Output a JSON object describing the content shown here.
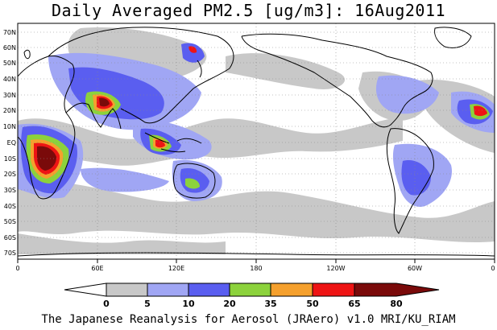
{
  "title": "Daily Averaged PM2.5 [ug/m3]: 16Aug2011",
  "credit": "The Japanese Reanalysis for Aerosol (JRAero) v1.0 MRI/KU_RIAM",
  "map": {
    "lon_labels": [
      "0",
      "60E",
      "120E",
      "180",
      "120W",
      "60W",
      "0"
    ],
    "lat_labels": [
      "70N",
      "60N",
      "50N",
      "40N",
      "30N",
      "20N",
      "10N",
      "EQ",
      "10S",
      "20S",
      "30S",
      "40S",
      "50S",
      "60S",
      "70S"
    ]
  },
  "colorbar": {
    "labels": [
      "0",
      "5",
      "10",
      "20",
      "35",
      "50",
      "65",
      "80"
    ],
    "colors": [
      "#ffffff",
      "#c8c8c8",
      "#a0a6f4",
      "#5a5ef0",
      "#8cd23c",
      "#f5a02d",
      "#ee1414",
      "#7a0a0a"
    ]
  }
}
